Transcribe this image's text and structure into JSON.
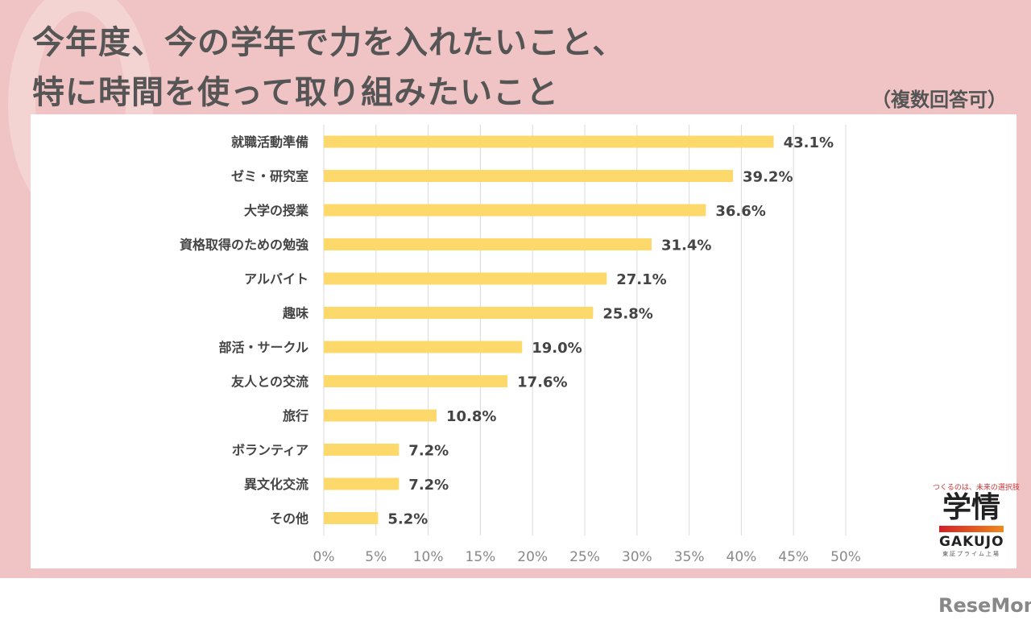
{
  "title_line1": "今年度、今の学年で力を入れたいこと、",
  "title_line2": "特に時間を使って取り組みたいこと",
  "note": "（複数回答可）",
  "logo": {
    "tagline": "つくるのは、未来の選択肢",
    "kanji": "学情",
    "english": "GAKUJO",
    "sub": "東証プライム上場"
  },
  "watermark": "ReseMom",
  "colors": {
    "bar": "#fdd86a",
    "background": "#f0c4c5",
    "grid": "#d9d9d9"
  },
  "chart_data": {
    "type": "bar",
    "orientation": "horizontal",
    "categories": [
      "就職活動準備",
      "ゼミ・研究室",
      "大学の授業",
      "資格取得のための勉強",
      "アルバイト",
      "趣味",
      "部活・サークル",
      "友人との交流",
      "旅行",
      "ボランティア",
      "異文化交流",
      "その他"
    ],
    "values": [
      43.1,
      39.2,
      36.6,
      31.4,
      27.1,
      25.8,
      19.0,
      17.6,
      10.8,
      7.2,
      7.2,
      5.2
    ],
    "value_labels": [
      "43.1%",
      "39.2%",
      "36.6%",
      "31.4%",
      "27.1%",
      "25.8%",
      "19.0%",
      "17.6%",
      "10.8%",
      "7.2%",
      "7.2%",
      "5.2%"
    ],
    "xlim": [
      0,
      50
    ],
    "ticks": [
      "0%",
      "5%",
      "10%",
      "15%",
      "20%",
      "25%",
      "30%",
      "35%",
      "40%",
      "45%",
      "50%"
    ],
    "grid": true
  }
}
